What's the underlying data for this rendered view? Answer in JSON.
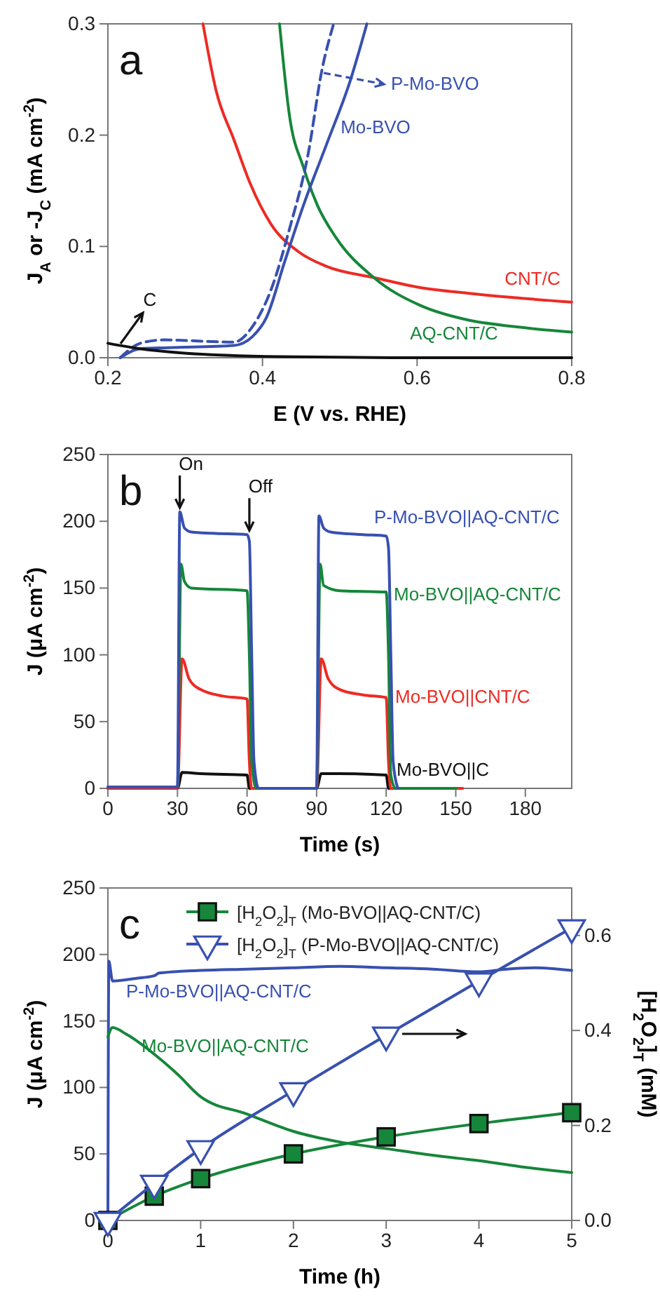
{
  "chart_data": [
    {
      "type": "line",
      "annotations": [
        "a"
      ],
      "xlabel": "E (V vs. RHE)",
      "ylabel": "J$_{A}$ or -J$_{C}$ (mA cm$^{-2}$)",
      "xlim": [
        0.2,
        0.8
      ],
      "ylim": [
        0,
        0.3
      ],
      "xticks": [
        0.2,
        0.4,
        0.6,
        0.8
      ],
      "yticks": [
        {
          "value": 0,
          "label": "0.0"
        },
        0.1,
        0.2,
        0.3
      ],
      "grid": false,
      "series": [
        {
          "name": "CNT/C",
          "color": "#ee2a24",
          "x": [
            0.323,
            0.34,
            0.363,
            0.385,
            0.411,
            0.447,
            0.483,
            0.544,
            0.604,
            0.665,
            0.725,
            0.8
          ],
          "values": [
            0.3,
            0.24,
            0.196,
            0.155,
            0.12,
            0.095,
            0.082,
            0.072,
            0.063,
            0.058,
            0.054,
            0.05
          ]
        },
        {
          "name": "AQ-CNT/C",
          "color": "#16863a",
          "x": [
            0.422,
            0.435,
            0.453,
            0.471,
            0.495,
            0.544,
            0.604,
            0.665,
            0.725,
            0.8
          ],
          "values": [
            0.3,
            0.217,
            0.171,
            0.137,
            0.108,
            0.072,
            0.047,
            0.034,
            0.028,
            0.023
          ]
        },
        {
          "name": "Mo-BVO",
          "color": "#3850b0",
          "x": [
            0.216,
            0.242,
            0.278,
            0.363,
            0.387,
            0.405,
            0.429,
            0.453,
            0.483,
            0.514,
            0.535
          ],
          "values": [
            0,
            0.008,
            0.009,
            0.011,
            0.019,
            0.036,
            0.087,
            0.137,
            0.192,
            0.25,
            0.3
          ]
        },
        {
          "name": "P-Mo-BVO",
          "color": "#3850b0",
          "line_style": "dashed",
          "x": [
            0.216,
            0.242,
            0.272,
            0.363,
            0.387,
            0.411,
            0.435,
            0.459,
            0.477,
            0.492
          ],
          "values": [
            0,
            0.013,
            0.016,
            0.014,
            0.028,
            0.061,
            0.116,
            0.183,
            0.259,
            0.3
          ]
        },
        {
          "name": "C",
          "color": "#111111",
          "x": [
            0.2,
            0.242,
            0.302,
            0.423,
            0.6,
            0.8
          ],
          "values": [
            0.013,
            0.008,
            0.004,
            0.001,
            0,
            0
          ]
        }
      ]
    },
    {
      "type": "line",
      "annotations": [
        "b",
        {
          "text": "On",
          "x": 31,
          "y": 207
        },
        {
          "text": "Off",
          "x": 61,
          "y": 190
        }
      ],
      "xlabel": "Time (s)",
      "ylabel": "J (μA cm$^{-2}$)",
      "xlim": [
        0,
        200
      ],
      "ylim": [
        0,
        250
      ],
      "xticks": [
        0,
        30,
        60,
        90,
        120,
        150,
        180
      ],
      "yticks": [
        0,
        50,
        100,
        150,
        200,
        250
      ],
      "grid": false,
      "series": [
        {
          "name": "Mo-BVO||C",
          "color": "#111111",
          "x": [
            0,
            30,
            32,
            40,
            60,
            61,
            90,
            92,
            100,
            120,
            121,
            140
          ],
          "values": [
            0,
            0,
            12,
            11,
            10,
            0,
            0,
            11,
            11,
            10,
            0,
            0
          ]
        },
        {
          "name": "Mo-BVO||CNT/C",
          "color": "#ee2a24",
          "x": [
            0,
            30,
            32,
            35,
            40,
            50,
            60,
            61,
            62,
            90,
            92,
            95,
            100,
            110,
            120,
            121,
            122,
            153
          ],
          "values": [
            0,
            0,
            97,
            82,
            74,
            69,
            67,
            20,
            0,
            0,
            97,
            82,
            74,
            70,
            68,
            20,
            0,
            0
          ]
        },
        {
          "name": "Mo-BVO||AQ-CNT/C",
          "color": "#16863a",
          "x": [
            0,
            30,
            31.5,
            33,
            36,
            60,
            61,
            62,
            64,
            90,
            91.5,
            93,
            100,
            120,
            121,
            122,
            124,
            150
          ],
          "values": [
            1,
            1,
            168,
            155,
            150,
            148,
            100,
            20,
            0,
            0,
            168,
            152,
            148,
            147,
            100,
            10,
            0,
            0
          ]
        },
        {
          "name": "P-Mo-BVO||AQ-CNT/C",
          "color": "#3850b0",
          "x": [
            0,
            30,
            31,
            33,
            36,
            45,
            60,
            61,
            62,
            63,
            65,
            90,
            91,
            93,
            96,
            110,
            120,
            121,
            122,
            123,
            125
          ],
          "values": [
            1,
            1,
            207,
            195,
            192,
            191,
            190,
            185,
            100,
            20,
            0,
            0,
            204,
            195,
            192,
            190,
            189,
            180,
            100,
            20,
            0
          ]
        }
      ]
    },
    {
      "type": "line",
      "annotations": [
        "c"
      ],
      "xlabel": "Time (h)",
      "ylabel": "J (μA cm$^{-2}$)",
      "y2label": "[H$_{2}$O$_{2}$]$_{T}$ (mM)",
      "xlim": [
        0,
        5
      ],
      "ylim": [
        0,
        250
      ],
      "y2lim": [
        0,
        0.7
      ],
      "xticks": [
        0,
        1,
        2,
        3,
        4,
        5
      ],
      "yticks": [
        0,
        50,
        100,
        150,
        200,
        250
      ],
      "y2ticks": [
        {
          "value": 0,
          "label": "0.0"
        },
        0.2,
        0.4,
        0.6
      ],
      "grid": false,
      "legend": "top",
      "series": [
        {
          "name": "P-Mo-BVO||AQ-CNT/C",
          "color": "#3850b0",
          "x": [
            0,
            0.01,
            0.05,
            0.3,
            0.5,
            0.55,
            1,
            1.5,
            2,
            2.5,
            3,
            3.5,
            4,
            4.3,
            4.6,
            5
          ],
          "values": [
            0,
            195,
            180,
            182,
            184,
            186,
            188,
            189,
            190,
            191,
            190,
            189,
            187,
            189,
            190,
            188
          ]
        },
        {
          "name": "Mo-BVO||AQ-CNT/C",
          "color": "#16863a",
          "x": [
            0,
            0.05,
            0.2,
            0.5,
            0.75,
            1,
            1.5,
            2,
            2.5,
            3,
            3.5,
            4,
            4.5,
            5
          ],
          "values": [
            138,
            145,
            140,
            125,
            110,
            93,
            80,
            67,
            59,
            54,
            49,
            45,
            40,
            36
          ]
        },
        {
          "name": "[H$_{2}$O$_{2}$]$_{T}$ (Mo-BVO||AQ-CNT/C)",
          "color": "#16863a",
          "axis": "y2",
          "marker": "square",
          "x": [
            0,
            0.5,
            1,
            2,
            3,
            4,
            5
          ],
          "values": [
            0,
            0.051,
            0.088,
            0.14,
            0.176,
            0.204,
            0.227
          ]
        },
        {
          "name": "[H$_{2}$O$_{2}$]$_{T}$ (P-Mo-BVO||AQ-CNT/C)",
          "color": "#3850b0",
          "axis": "y2",
          "marker": "triangle",
          "x": [
            0,
            0.5,
            1,
            2,
            3,
            4,
            5
          ],
          "values": [
            0,
            0.078,
            0.151,
            0.273,
            0.39,
            0.504,
            0.616
          ]
        }
      ]
    }
  ]
}
